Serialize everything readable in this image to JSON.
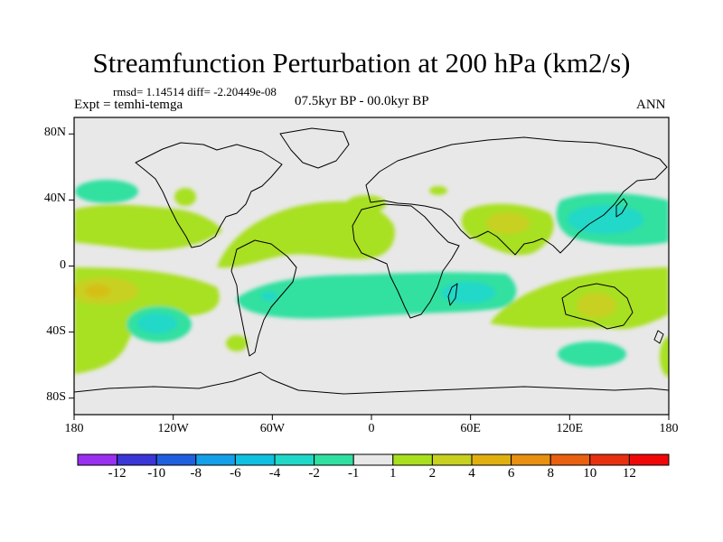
{
  "title": "Streamfunction Perturbation at 200 hPa (km2/s)",
  "stats": "rmsd= 1.14514 diff= -2.20449e-08",
  "experiment": "Expt = temhi-temga",
  "period": "07.5kyr BP - 00.0kyr BP",
  "season": "ANN",
  "map": {
    "projection": "cylindrical equidistant",
    "lon_range": [
      -180,
      180
    ],
    "lat_range": [
      -90,
      90
    ],
    "x_ticks": [
      {
        "lon": -180,
        "label": "180"
      },
      {
        "lon": -120,
        "label": "120W"
      },
      {
        "lon": -60,
        "label": "60W"
      },
      {
        "lon": 0,
        "label": "0"
      },
      {
        "lon": 60,
        "label": "60E"
      },
      {
        "lon": 120,
        "label": "120E"
      },
      {
        "lon": 180,
        "label": "180"
      }
    ],
    "y_ticks": [
      {
        "lat": 80,
        "label": "80N"
      },
      {
        "lat": 40,
        "label": "40N"
      },
      {
        "lat": 0,
        "label": "0"
      },
      {
        "lat": -40,
        "label": "40S"
      },
      {
        "lat": -80,
        "label": "80S"
      }
    ]
  },
  "colorbar": {
    "labels": [
      "-12",
      "-10",
      "-8",
      "-6",
      "-4",
      "-2",
      "-1",
      "1",
      "2",
      "4",
      "6",
      "8",
      "10",
      "12"
    ],
    "colors": [
      "#9a30f0",
      "#3a36d8",
      "#2060e0",
      "#14a0e8",
      "#10c0e0",
      "#20d8c8",
      "#30e0a0",
      "#e8e8e8",
      "#a8e020",
      "#c8d020",
      "#e0b010",
      "#e89010",
      "#e86010",
      "#e83010",
      "#f00808"
    ]
  },
  "legend_colors": {
    "neutral": "#e8e8e8",
    "neg1": "#30e0a0",
    "neg2": "#20d8c8",
    "pos1": "#a8e020",
    "pos2": "#c8d020",
    "pos3": "#e0b010"
  }
}
